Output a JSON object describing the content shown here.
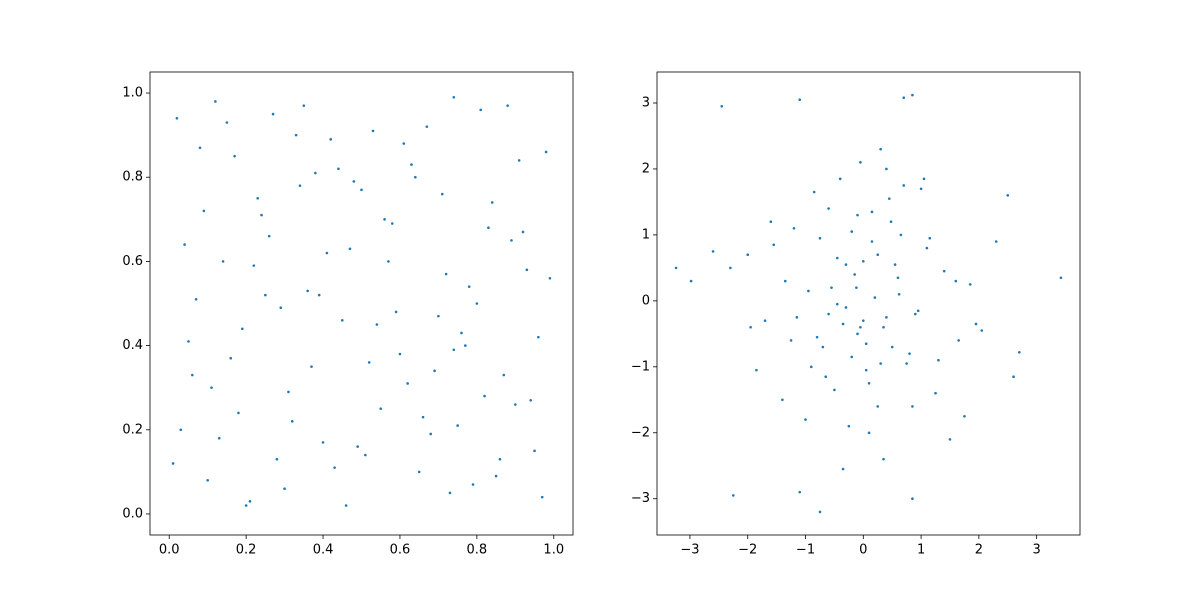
{
  "chart_data": [
    {
      "type": "scatter",
      "color": "#1f77b4",
      "xlim": [
        -0.05,
        1.05
      ],
      "ylim": [
        -0.05,
        1.05
      ],
      "xticks": [
        {
          "value": 0,
          "label": "0.0"
        },
        0.2,
        0.4,
        0.6,
        0.8,
        {
          "value": 1,
          "label": "1.0"
        }
      ],
      "yticks": [
        {
          "value": 0,
          "label": "0.0"
        },
        0.2,
        0.4,
        0.6,
        0.8,
        {
          "value": 1,
          "label": "1.0"
        }
      ],
      "x": [
        0.02,
        0.05,
        0.09,
        0.13,
        0.17,
        0.21,
        0.26,
        0.31,
        0.35,
        0.39,
        0.43,
        0.48,
        0.52,
        0.57,
        0.61,
        0.66,
        0.7,
        0.74,
        0.79,
        0.83,
        0.87,
        0.91,
        0.95,
        0.99,
        0.01,
        0.07,
        0.11,
        0.15,
        0.19,
        0.24,
        0.28,
        0.33,
        0.37,
        0.41,
        0.46,
        0.5,
        0.55,
        0.59,
        0.63,
        0.68,
        0.72,
        0.77,
        0.81,
        0.85,
        0.89,
        0.94,
        0.98,
        0.04,
        0.1,
        0.16,
        0.22,
        0.27,
        0.32,
        0.38,
        0.45,
        0.51,
        0.56,
        0.62,
        0.67,
        0.73,
        0.78,
        0.84,
        0.9,
        0.96,
        0.03,
        0.08,
        0.14,
        0.2,
        0.29,
        0.34,
        0.4,
        0.47,
        0.53,
        0.6,
        0.65,
        0.71,
        0.76,
        0.82,
        0.88,
        0.93,
        0.06,
        0.12,
        0.18,
        0.23,
        0.3,
        0.36,
        0.42,
        0.49,
        0.54,
        0.58,
        0.64,
        0.69,
        0.75,
        0.8,
        0.86,
        0.92,
        0.97,
        0.25,
        0.44,
        0.74
      ],
      "y": [
        0.94,
        0.41,
        0.72,
        0.18,
        0.85,
        0.03,
        0.66,
        0.29,
        0.97,
        0.52,
        0.11,
        0.79,
        0.36,
        0.6,
        0.88,
        0.23,
        0.47,
        0.99,
        0.07,
        0.68,
        0.33,
        0.84,
        0.15,
        0.56,
        0.12,
        0.51,
        0.3,
        0.93,
        0.44,
        0.71,
        0.13,
        0.9,
        0.35,
        0.62,
        0.02,
        0.77,
        0.25,
        0.48,
        0.83,
        0.19,
        0.57,
        0.4,
        0.96,
        0.09,
        0.65,
        0.27,
        0.86,
        0.64,
        0.08,
        0.37,
        0.59,
        0.95,
        0.22,
        0.81,
        0.46,
        0.14,
        0.7,
        0.31,
        0.92,
        0.05,
        0.54,
        0.74,
        0.26,
        0.42,
        0.2,
        0.87,
        0.6,
        0.02,
        0.49,
        0.78,
        0.17,
        0.63,
        0.91,
        0.38,
        0.1,
        0.76,
        0.43,
        0.28,
        0.97,
        0.58,
        0.33,
        0.98,
        0.24,
        0.75,
        0.06,
        0.53,
        0.89,
        0.16,
        0.45,
        0.69,
        0.8,
        0.34,
        0.21,
        0.5,
        0.13,
        0.67,
        0.04,
        0.52,
        0.82,
        0.39
      ]
    },
    {
      "type": "scatter",
      "color": "#1f77b4",
      "xlim": [
        -3.57,
        3.75
      ],
      "ylim": [
        -3.55,
        3.47
      ],
      "xticks": [
        {
          "value": -3,
          "label": "−3"
        },
        {
          "value": -2,
          "label": "−2"
        },
        {
          "value": -1,
          "label": "−1"
        },
        0,
        1,
        2,
        3
      ],
      "yticks": [
        {
          "value": -3,
          "label": "−3"
        },
        {
          "value": -2,
          "label": "−2"
        },
        {
          "value": -1,
          "label": "−1"
        },
        0,
        1,
        2,
        3
      ],
      "x": [
        -3.24,
        -2.98,
        3.42,
        -2.45,
        -1.1,
        0.7,
        0.85,
        -0.75,
        -2.25,
        -1.1,
        0.85,
        2.7,
        2.6,
        2.5,
        -0.12,
        0.35,
        -0.45,
        0.62,
        -0.8,
        1.1,
        -1.35,
        0.05,
        0.48,
        -0.2,
        0.9,
        -0.6,
        1.4,
        -1.7,
        0.25,
        -0.95,
        0.15,
        -0.3,
        0.75,
        -1.2,
        1.65,
        -0.05,
        0.55,
        -0.5,
        1.0,
        -1.55,
        0.4,
        -0.15,
        2.05,
        -2.0,
        0.1,
        -0.7,
        1.25,
        -0.4,
        0.65,
        -1.0,
        0.3,
        -0.25,
        1.85,
        -1.85,
        0.0,
        0.95,
        -0.85,
        1.5,
        -0.1,
        0.2,
        -0.55,
        0.8,
        -1.4,
        0.45,
        -0.35,
        1.15,
        -0.65,
        0.05,
        1.75,
        -2.3,
        0.6,
        -0.2,
        -1.15,
        0.35,
        2.3,
        -0.45,
        0.15,
        -0.9,
        1.3,
        -0.05,
        0.5,
        -1.6,
        0.25,
        -0.3,
        0.7,
        -1.25,
        1.95,
        0.1,
        -0.75,
        0.4,
        -0.1,
        1.05,
        -1.95,
        0.85,
        -0.6,
        0.3,
        -2.6,
        1.6,
        -0.35,
        0.0
      ],
      "y": [
        0.5,
        0.3,
        0.35,
        2.95,
        3.05,
        3.08,
        3.12,
        -3.2,
        -2.95,
        -2.9,
        -3.0,
        -0.78,
        -1.15,
        1.6,
        0.2,
        -0.4,
        0.65,
        0.1,
        -0.55,
        0.8,
        0.3,
        -1.05,
        1.2,
        -0.85,
        -0.2,
        1.4,
        0.45,
        -0.3,
        -1.6,
        0.15,
        0.9,
        -0.1,
        -0.95,
        1.1,
        -0.6,
        2.1,
        0.55,
        -1.35,
        1.7,
        0.85,
        -0.25,
        0.4,
        -0.45,
        0.7,
        -2.0,
        -0.7,
        -1.4,
        1.85,
        1.0,
        -1.8,
        2.3,
        -1.9,
        0.25,
        -1.05,
        0.6,
        -0.15,
        1.65,
        -2.1,
        -0.5,
        0.05,
        0.2,
        -0.8,
        -1.5,
        1.55,
        -0.35,
        0.95,
        -1.15,
        -0.65,
        -1.75,
        0.5,
        0.35,
        1.05,
        -0.25,
        -2.4,
        0.9,
        -0.05,
        1.35,
        -1.0,
        -0.9,
        -0.4,
        -0.7,
        1.2,
        0.7,
        0.55,
        1.75,
        -0.6,
        -0.35,
        -1.25,
        0.95,
        2.0,
        1.3,
        1.85,
        -0.4,
        -1.6,
        -0.2,
        -0.95,
        0.75,
        0.3,
        -2.55,
        -0.3
      ]
    }
  ]
}
